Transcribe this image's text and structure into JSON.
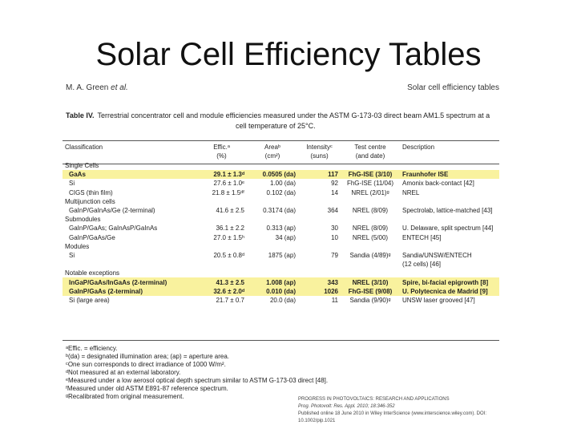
{
  "slide": {
    "title": "Solar Cell Efficiency Tables"
  },
  "header": {
    "left_author": "M. A. Green",
    "left_etal": "et al.",
    "right": "Solar cell efficiency tables"
  },
  "caption": {
    "label": "Table IV.",
    "line1": "Terrestrial concentrator cell and module efficiencies measured under the ASTM G-173-03 direct beam AM1.5 spectrum at a",
    "line2": "cell temperature of 25°C."
  },
  "columns": {
    "row1": [
      "Classification",
      "Effic.ᵃ",
      "Areaᵇ",
      "Intensityᶜ",
      "Test centre",
      "Description"
    ],
    "row2": [
      "",
      "(%)",
      "(cm²)",
      "(suns)",
      "(and date)",
      ""
    ]
  },
  "rows": [
    {
      "type": "section",
      "label": "Single Cells"
    },
    {
      "type": "data",
      "hl": true,
      "c": [
        "GaAs",
        "29.1 ± 1.3ᵈ",
        "0.0505 (da)",
        "117",
        "FhG-ISE (3/10)",
        "Fraunhofer ISE"
      ]
    },
    {
      "type": "data",
      "hl": false,
      "c": [
        "Si",
        "27.6 ± 1.0ᵉ",
        "1.00 (da)",
        "92",
        "FhG-ISE (11/04)",
        "Amonix back-contact [42]"
      ]
    },
    {
      "type": "data",
      "hl": false,
      "c": [
        "CIGS (thin film)",
        "21.8 ± 1.5ᵈᶠ",
        "0.102 (da)",
        "14",
        "NREL (2/01)ᵍ",
        "NREL"
      ]
    },
    {
      "type": "section",
      "label": "Multijunction cells"
    },
    {
      "type": "data",
      "hl": false,
      "c": [
        "GaInP/GaInAs/Ge (2-terminal)",
        "41.6 ± 2.5",
        "0.3174 (da)",
        "364",
        "NREL (8/09)",
        "Spectrolab, lattice-matched [43]"
      ]
    },
    {
      "type": "section",
      "label": "Submodules"
    },
    {
      "type": "data",
      "hl": false,
      "c": [
        "GaInP/GaAs; GaInAsP/GaInAs",
        "36.1 ± 2.2",
        "0.313 (ap)",
        "30",
        "NREL (8/09)",
        "U. Delaware, split spectrum [44]"
      ]
    },
    {
      "type": "data",
      "hl": false,
      "c": [
        "GaInP/GaAs/Ge",
        "27.0 ± 1.5ʰ",
        "34 (ap)",
        "10",
        "NREL (5/00)",
        "ENTECH [45]"
      ]
    },
    {
      "type": "section",
      "label": "Modules"
    },
    {
      "type": "data",
      "hl": false,
      "c": [
        "Si",
        "20.5 ± 0.8ᵈ",
        "1875 (ap)",
        "79",
        "Sandia (4/89)ᵍ",
        "Sandia/UNSW/ENTECH"
      ]
    },
    {
      "type": "cont",
      "c": [
        "",
        "",
        "",
        "",
        "",
        "(12 cells) [46]"
      ]
    },
    {
      "type": "section",
      "label": "Notable exceptions"
    },
    {
      "type": "data",
      "hl": true,
      "c": [
        "InGaP/GaAs/InGaAs (2-terminal)",
        "41.3 ± 2.5",
        "1.008 (ap)",
        "343",
        "NREL (3/10)",
        "Spire, bi-facial epigrowth [8]"
      ]
    },
    {
      "type": "data",
      "hl": true,
      "c": [
        "GaInP/GaAs (2-terminal)",
        "32.6 ± 2.0ᵈ",
        "0.010 (da)",
        "1026",
        "FhG-ISE (9/08)",
        "U. Polytecnica de Madrid [9]"
      ]
    },
    {
      "type": "data",
      "hl": false,
      "c": [
        "Si (large area)",
        "21.7 ± 0.7",
        "20.0 (da)",
        "11",
        "Sandia (9/90)ᵍ",
        "UNSW laser grooved [47]"
      ]
    }
  ],
  "notes": [
    "ᵃEffic. = efficiency.",
    "ᵇ(da) = designated illumination area; (ap) = aperture area.",
    "ᶜOne sun corresponds to direct irradiance of 1000 W/m².",
    "ᵈNot measured at an external laboratory.",
    "ᵉMeasured under a low aerosol optical depth spectrum similar to ASTM G-173-03 direct [48].",
    "ᶠMeasured under old ASTM E891-87 reference spectrum.",
    "ᵍRecalibrated from original measurement."
  ],
  "footer": {
    "line1": "PROGRESS IN PHOTOVOLTAICS: RESEARCH AND APPLICATIONS",
    "line2": "Prog. Photovolt: Res. Appl. 2010; 18:346-352",
    "line3": "Published online 18 June 2010 in Wiley InterScience (www.interscience.wiley.com). DOI: 10.1002/pip.1021"
  }
}
